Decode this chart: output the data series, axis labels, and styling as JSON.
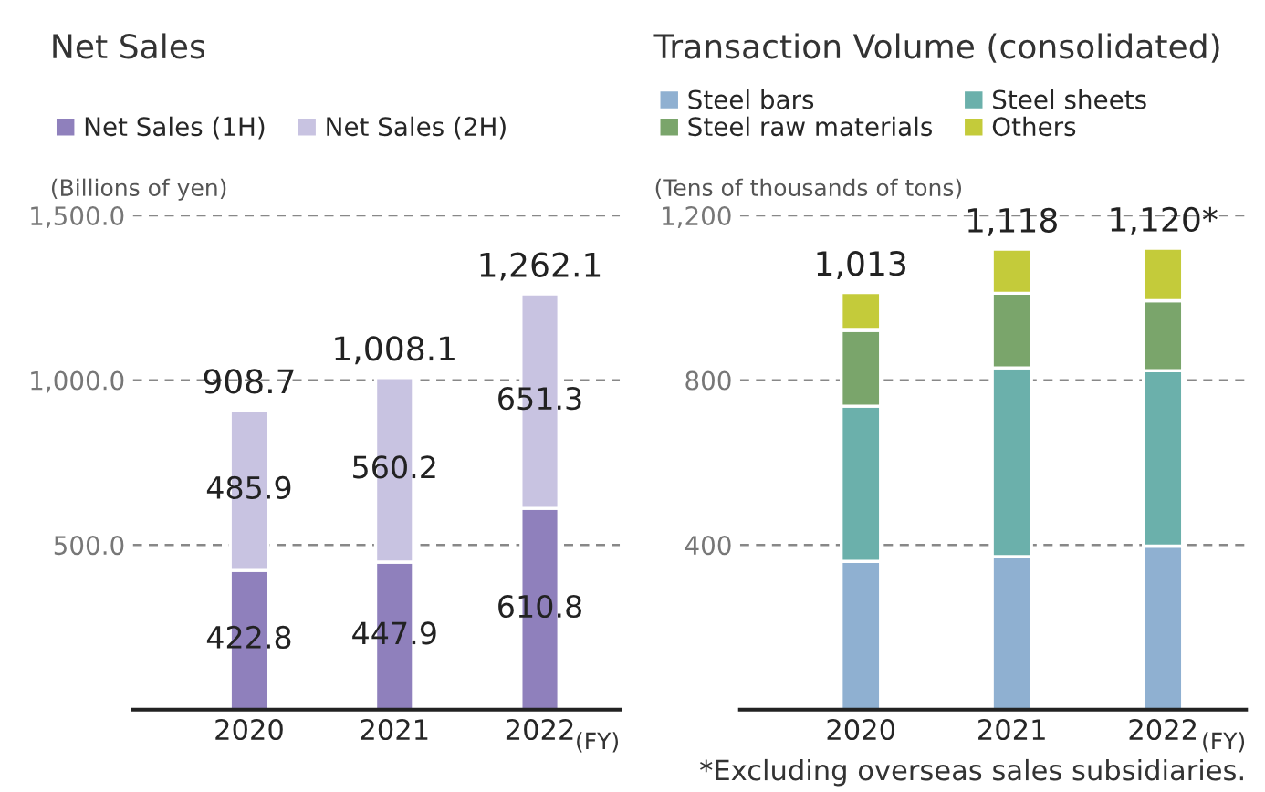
{
  "chart_data": [
    {
      "type": "bar",
      "title": "Net Sales",
      "ylabel": "(Billions of yen)",
      "xlabel": "(FY)",
      "categories": [
        "2020",
        "2021",
        "2022"
      ],
      "stacked": true,
      "series": [
        {
          "name": "Net Sales (1H)",
          "color": "#8f80bc",
          "values": [
            422.8,
            447.9,
            610.8
          ]
        },
        {
          "name": "Net Sales (2H)",
          "color": "#c8c3e1",
          "values": [
            485.9,
            560.2,
            651.3
          ]
        }
      ],
      "data_labels": true,
      "totals": [
        "908.7",
        "1,008.1",
        "1,262.1"
      ],
      "ylim": [
        0,
        1500
      ],
      "yticks": [
        {
          "value": 500,
          "label": "500.0"
        },
        {
          "value": 1000,
          "label": "1,000.0"
        },
        {
          "value": 1500,
          "label": "1,500.0"
        }
      ],
      "grid": "y",
      "legend": "top left"
    },
    {
      "type": "bar",
      "title": "Transaction Volume (consolidated)",
      "ylabel": "(Tens of thousands of tons)",
      "xlabel": "(FY)",
      "categories": [
        "2020",
        "2021",
        "2022"
      ],
      "stacked": true,
      "series": [
        {
          "name": "Steel bars",
          "color": "#8fb0d1",
          "values": [
            360,
            372,
            397
          ]
        },
        {
          "name": "Steel sheets",
          "color": "#6bb0ab",
          "values": [
            377,
            458,
            426
          ]
        },
        {
          "name": "Steel raw materials",
          "color": "#7aa56b",
          "values": [
            184,
            181,
            170
          ]
        },
        {
          "name": "Others",
          "color": "#c4cb3a",
          "values": [
            92,
            107,
            127
          ]
        }
      ],
      "totals": [
        "1,013",
        "1,118",
        "1,120*"
      ],
      "ylim": [
        0,
        1200
      ],
      "yticks": [
        400,
        800,
        {
          "value": 1200,
          "label": "1,200"
        }
      ],
      "grid": "y",
      "legend": "top left",
      "annotations": [
        "*Excluding overseas sales subsidiaries."
      ]
    }
  ]
}
